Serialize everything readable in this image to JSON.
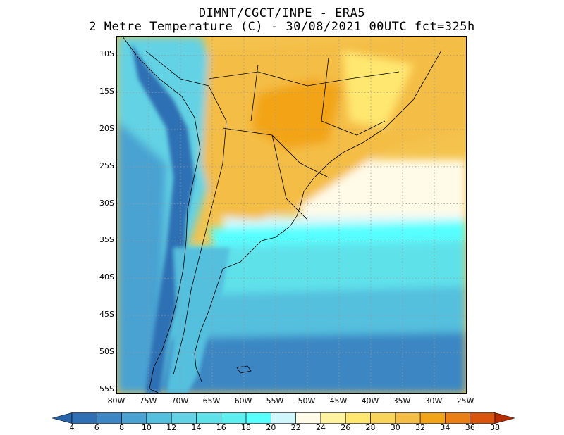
{
  "header": {
    "line1": "DIMNT/CGCT/INPE -  ERA5",
    "line2": "2 Metre Temperature (C) -  30/08/2021 00UTC fct=325h"
  },
  "map": {
    "lat_labels": [
      "10S",
      "15S",
      "20S",
      "25S",
      "30S",
      "35S",
      "40S",
      "45S",
      "50S",
      "55S"
    ],
    "lon_labels": [
      "80W",
      "75W",
      "70W",
      "65W",
      "60W",
      "55W",
      "50W",
      "45W",
      "40W",
      "35W",
      "30W",
      "25W"
    ],
    "lat_range": [
      -55.5,
      -7.5
    ],
    "lon_range": [
      -80,
      -25
    ],
    "grid": "dotted"
  },
  "colorbar": {
    "labels": [
      "4",
      "6",
      "8",
      "10",
      "12",
      "14",
      "16",
      "18",
      "20",
      "22",
      "24",
      "26",
      "28",
      "30",
      "32",
      "34",
      "36",
      "38"
    ],
    "colors": [
      "#2f6fb4",
      "#3b86c3",
      "#49a2d2",
      "#55bfde",
      "#62d2e4",
      "#5fe1ea",
      "#5defef",
      "#57ffff",
      "#cff6fb",
      "#fffbe8",
      "#fff3a0",
      "#ffe770",
      "#f9d45a",
      "#f4bd45",
      "#f2a418",
      "#ea7f16",
      "#d9550e",
      "#c73800"
    ],
    "low_arrow_color": "#2963a8",
    "high_arrow_color": "#b32d00",
    "extend": "both"
  }
}
